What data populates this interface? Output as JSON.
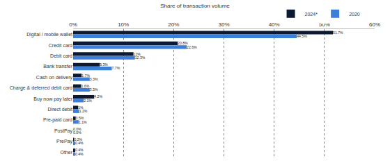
{
  "chart_data": {
    "type": "bar",
    "orientation": "horizontal",
    "title": "Share of transaction volume",
    "categories": [
      "Digital / mobile wallet",
      "Credit card",
      "Debit card",
      "Bank transfer",
      "Cash on delivery",
      "Charge & deferred debit card",
      "Buy now pay later",
      "Direct debit",
      "Pre-paid card",
      "PostPay",
      "PrePay",
      "Other"
    ],
    "series": [
      {
        "name": "2024*",
        "color": "#0d1a33",
        "values": [
          51.7,
          20.8,
          12,
          5.3,
          1.7,
          1.6,
          4.2,
          1,
          0.5,
          0.0,
          0.2,
          0.4
        ],
        "value_labels": [
          "51.7%",
          "20.8%",
          "12%",
          "5.3%",
          "1.7%",
          "1.6%",
          "4.2%",
          "1%",
          "0.5%",
          "0.0%",
          "0.2%",
          "0.4%"
        ]
      },
      {
        "name": "2020",
        "color": "#3b7fd9",
        "values": [
          44.5,
          22.6,
          12.3,
          7.7,
          3.3,
          3.3,
          2.1,
          1.2,
          1.1,
          0.0,
          0.4,
          0.4
        ],
        "value_labels": [
          "44.5%",
          "22.6%",
          "12.3%",
          "7.7%",
          "3.3%",
          "3.3%",
          "2.1%",
          "1.2%",
          "1.1%",
          "0.0%",
          "0.4%",
          "0.4%"
        ]
      }
    ],
    "xlim": [
      0,
      60
    ],
    "xticks": [
      {
        "value": 0,
        "label": "0%"
      },
      {
        "value": 10,
        "label": "10%"
      },
      {
        "value": 20,
        "label": "20%"
      },
      {
        "value": 30,
        "label": "30%"
      },
      {
        "value": 40,
        "label": "40%"
      },
      {
        "value": 50,
        "label": "50%"
      },
      {
        "value": 60,
        "label": "60%"
      }
    ],
    "grid": true,
    "data_labels": true,
    "legend": "top right"
  }
}
